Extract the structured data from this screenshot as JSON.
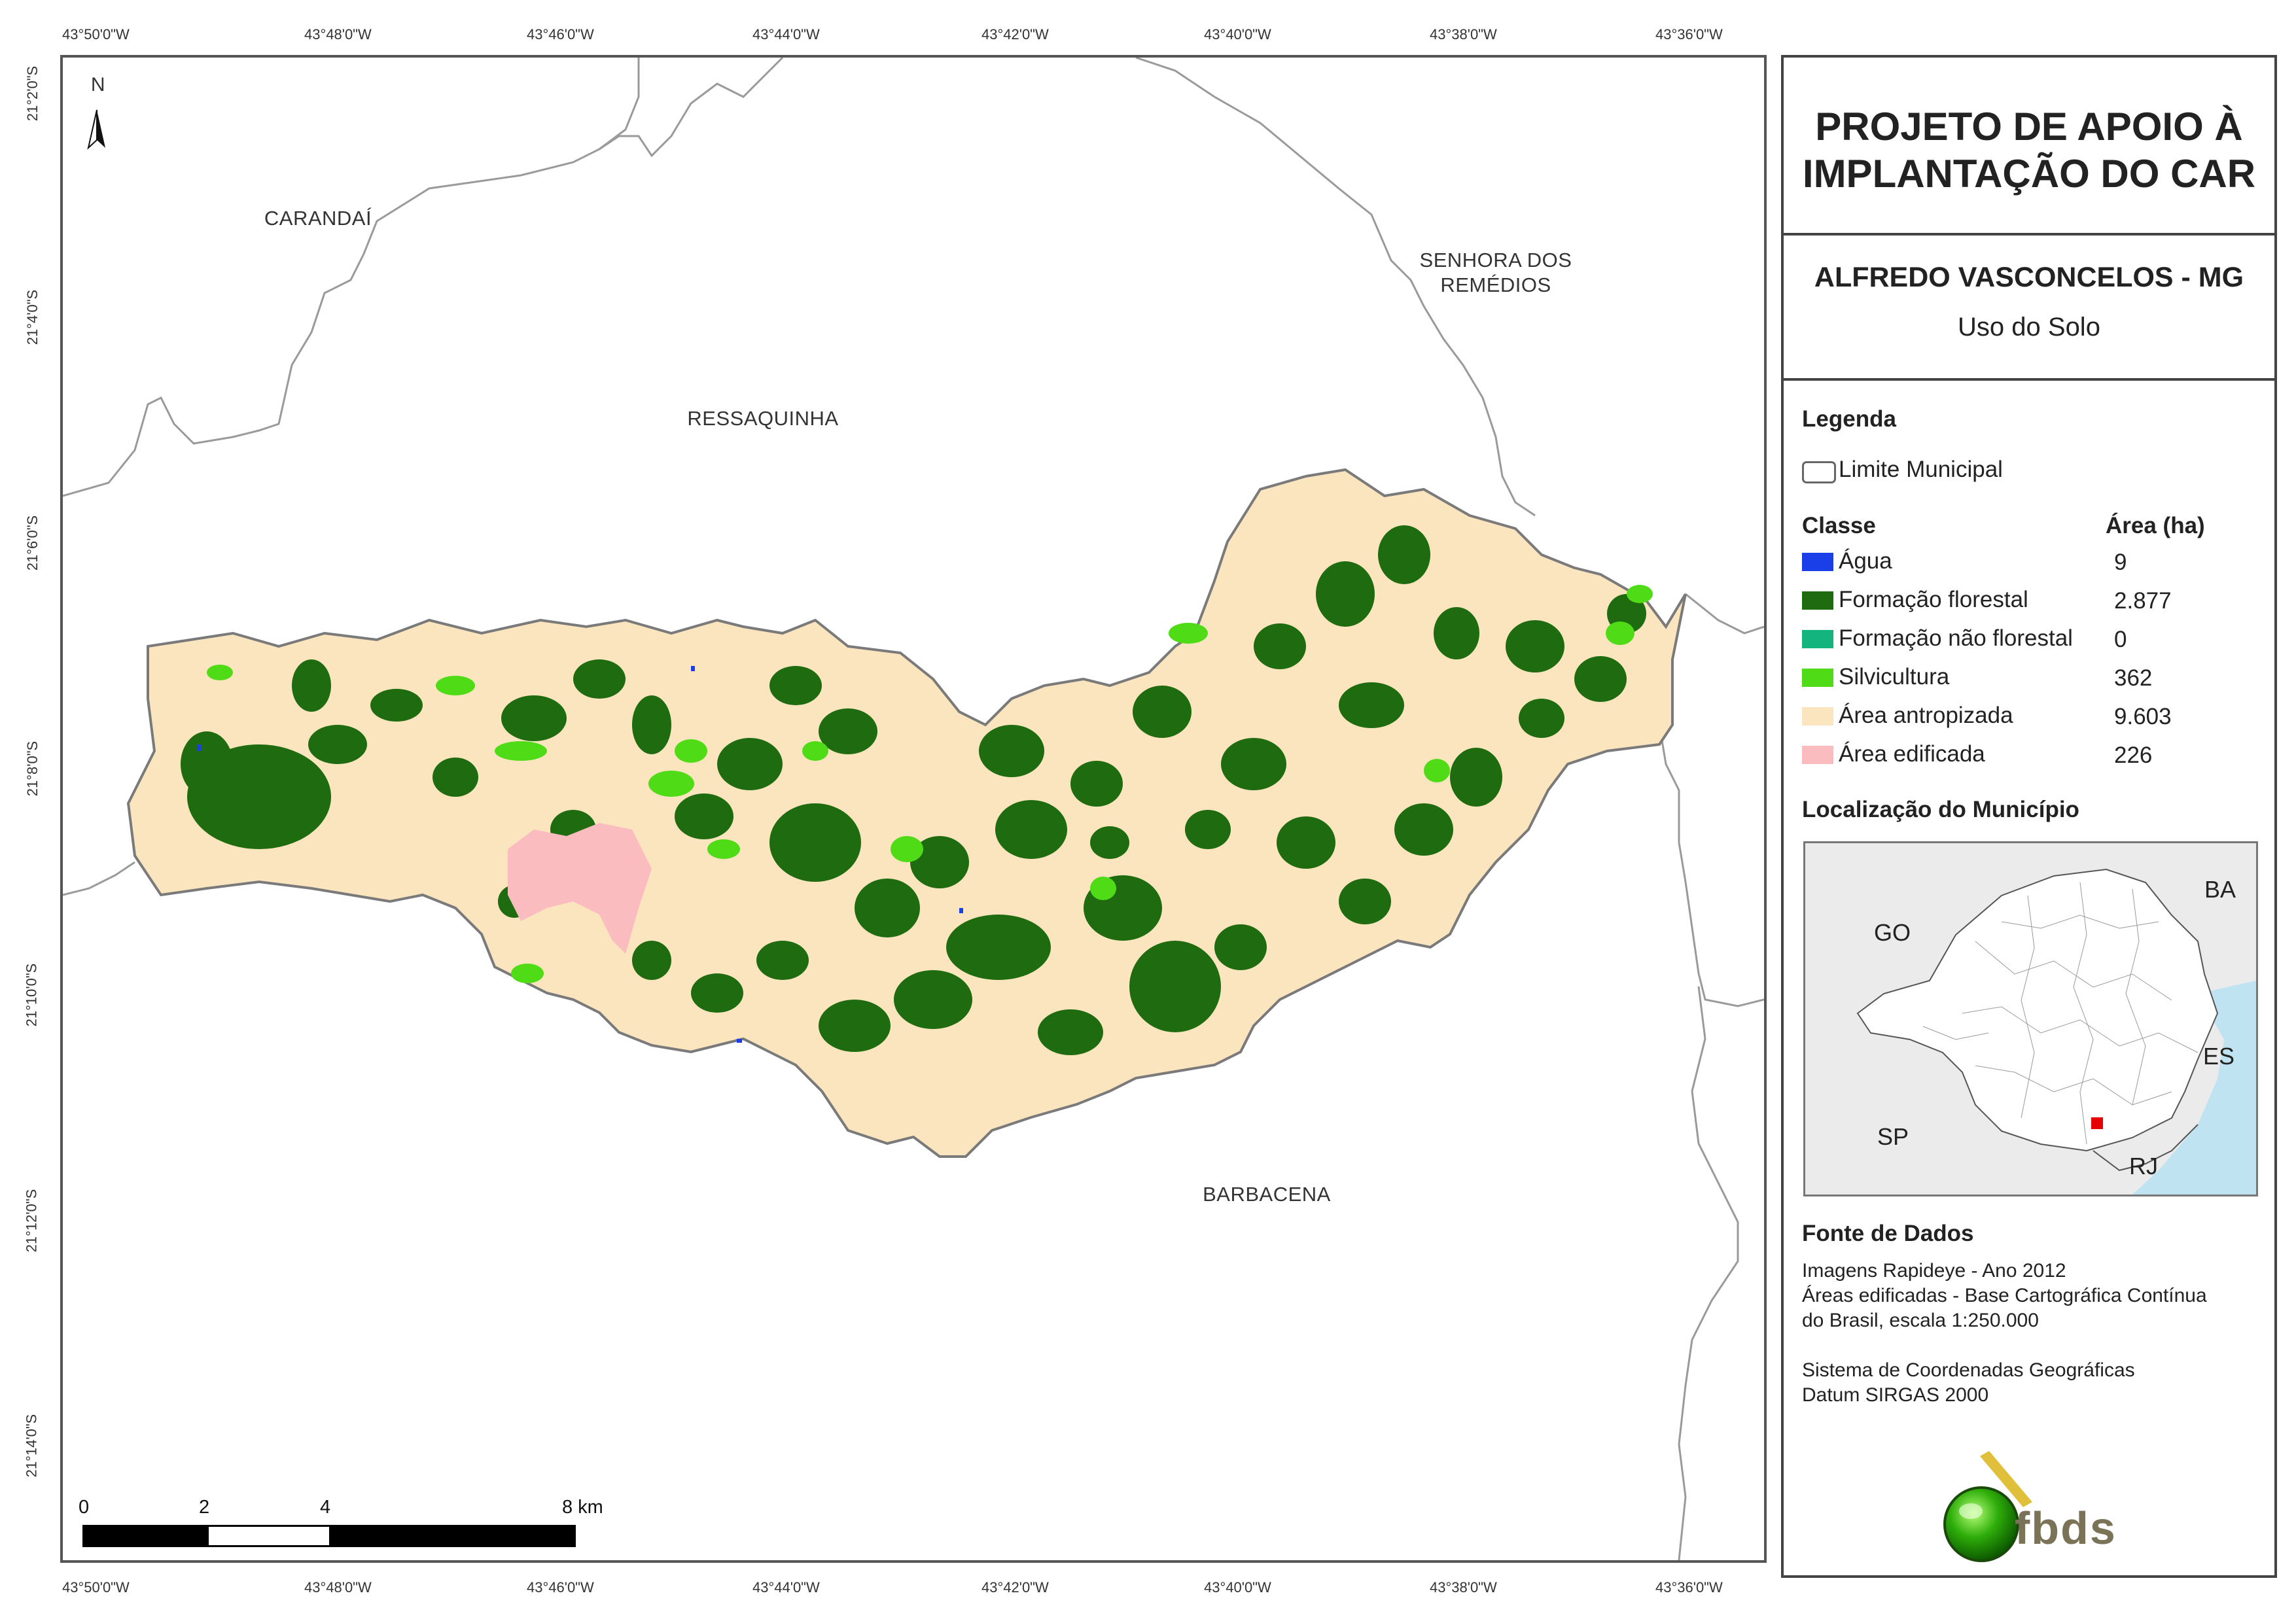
{
  "graticule": {
    "longitudes": [
      "43°50'0\"W",
      "43°48'0\"W",
      "43°46'0\"W",
      "43°44'0\"W",
      "43°42'0\"W",
      "43°40'0\"W",
      "43°38'0\"W",
      "43°36'0\"W"
    ],
    "latitudes": [
      "21°2'0\"S",
      "21°4'0\"S",
      "21°6'0\"S",
      "21°8'0\"S",
      "21°10'0\"S",
      "21°12'0\"S",
      "21°14'0\"S"
    ]
  },
  "map": {
    "north_label": "N",
    "neighbors": {
      "carandai": "CARANDAÍ",
      "senhora_line1": "SENHORA DOS",
      "senhora_line2": "REMÉDIOS",
      "ressaquinha": "RESSAQUINHA",
      "barbacena": "BARBACENA"
    },
    "scale_bar": {
      "labels": [
        "0",
        "2",
        "4",
        "8 km"
      ],
      "stops_km": [
        0,
        2,
        4,
        8
      ]
    }
  },
  "panel": {
    "title_line1": "PROJETO DE APOIO À",
    "title_line2": "IMPLANTAÇÃO DO CAR",
    "municipality": "ALFREDO VASCONCELOS - MG",
    "theme": "Uso do Solo",
    "legend": {
      "heading": "Legenda",
      "limit_label": "Limite Municipal",
      "class_header": "Classe",
      "area_header": "Área (ha)",
      "items": [
        {
          "label": "Água",
          "area": "9",
          "color": "#1a3ee8"
        },
        {
          "label": "Formação florestal",
          "area": "2.877",
          "color": "#1e6b10"
        },
        {
          "label": "Formação não florestal",
          "area": "0",
          "color": "#13b47e"
        },
        {
          "label": "Silvicultura",
          "area": "362",
          "color": "#4fdc17"
        },
        {
          "label": "Área antropizada",
          "area": "9.603",
          "color": "#fbe5bf"
        },
        {
          "label": "Área edificada",
          "area": "226",
          "color": "#fbbcc0"
        }
      ]
    },
    "location": {
      "heading": "Localização do Município",
      "states": {
        "ba": "BA",
        "go": "GO",
        "es": "ES",
        "sp": "SP",
        "rj": "RJ"
      }
    },
    "sources": {
      "heading": "Fonte de Dados",
      "lines": [
        "Imagens Rapideye - Ano 2012",
        "Áreas edificadas - Base Cartográfica Contínua",
        "do Brasil, escala 1:250.000",
        "",
        "Sistema de Coordenadas Geográficas",
        "Datum SIRGAS 2000"
      ]
    },
    "logo_text": "fbds"
  },
  "colors": {
    "frame": "#555555",
    "municipal_limit": "#9a9a9a",
    "sea": "#bfe3f1",
    "highlight": "#e60000"
  }
}
